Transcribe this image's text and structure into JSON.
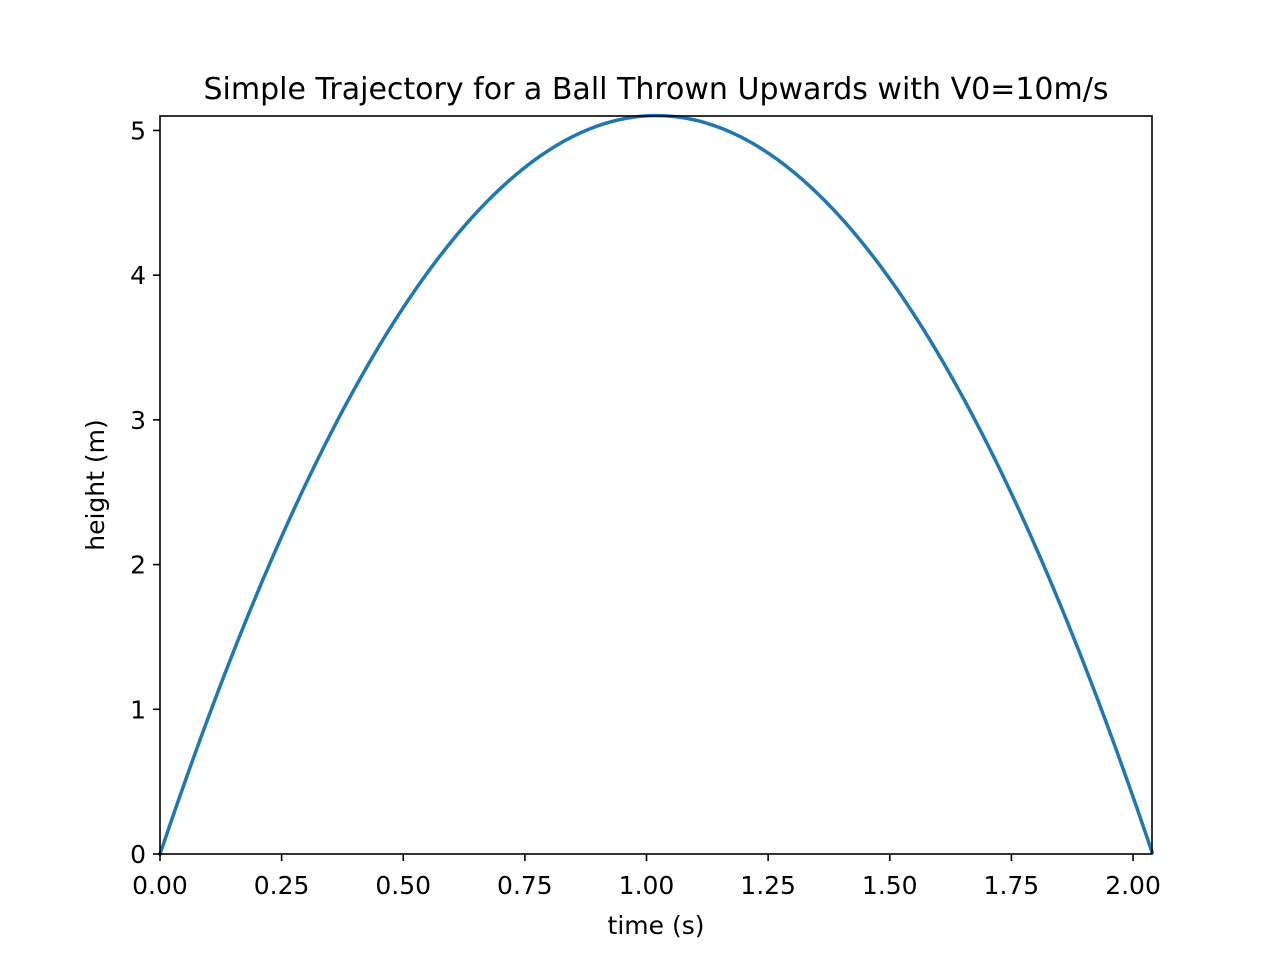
{
  "chart_data": {
    "type": "line",
    "title": "Simple Trajectory for a Ball Thrown Upwards with V0=10m/s",
    "xlabel": "time (s)",
    "ylabel": "height (m)",
    "xlim": [
      0,
      2.039
    ],
    "ylim": [
      0,
      5.1
    ],
    "x_ticks": [
      0,
      0.25,
      0.5,
      0.75,
      1.0,
      1.25,
      1.5,
      1.75,
      2.0
    ],
    "x_tick_labels": [
      "0.00",
      "0.25",
      "0.50",
      "0.75",
      "1.00",
      "1.25",
      "1.50",
      "1.75",
      "2.00"
    ],
    "y_ticks": [
      0,
      1,
      2,
      3,
      4,
      5
    ],
    "y_tick_labels": [
      "0",
      "1",
      "2",
      "3",
      "4",
      "5"
    ],
    "grid": false,
    "series": [
      {
        "color": "#1f77b4",
        "x": [
          0.0,
          0.1,
          0.2,
          0.3,
          0.4,
          0.5,
          0.6,
          0.7,
          0.8,
          0.9,
          1.0,
          1.02,
          1.1,
          1.2,
          1.3,
          1.4,
          1.5,
          1.6,
          1.7,
          1.8,
          1.9,
          2.0,
          2.039
        ],
        "y": [
          0.0,
          0.951,
          1.804,
          2.559,
          3.216,
          3.775,
          4.236,
          4.599,
          4.864,
          5.031,
          5.1,
          5.102,
          5.071,
          4.944,
          4.719,
          4.396,
          3.975,
          3.456,
          2.839,
          2.124,
          1.311,
          0.4,
          0.0
        ]
      }
    ]
  }
}
